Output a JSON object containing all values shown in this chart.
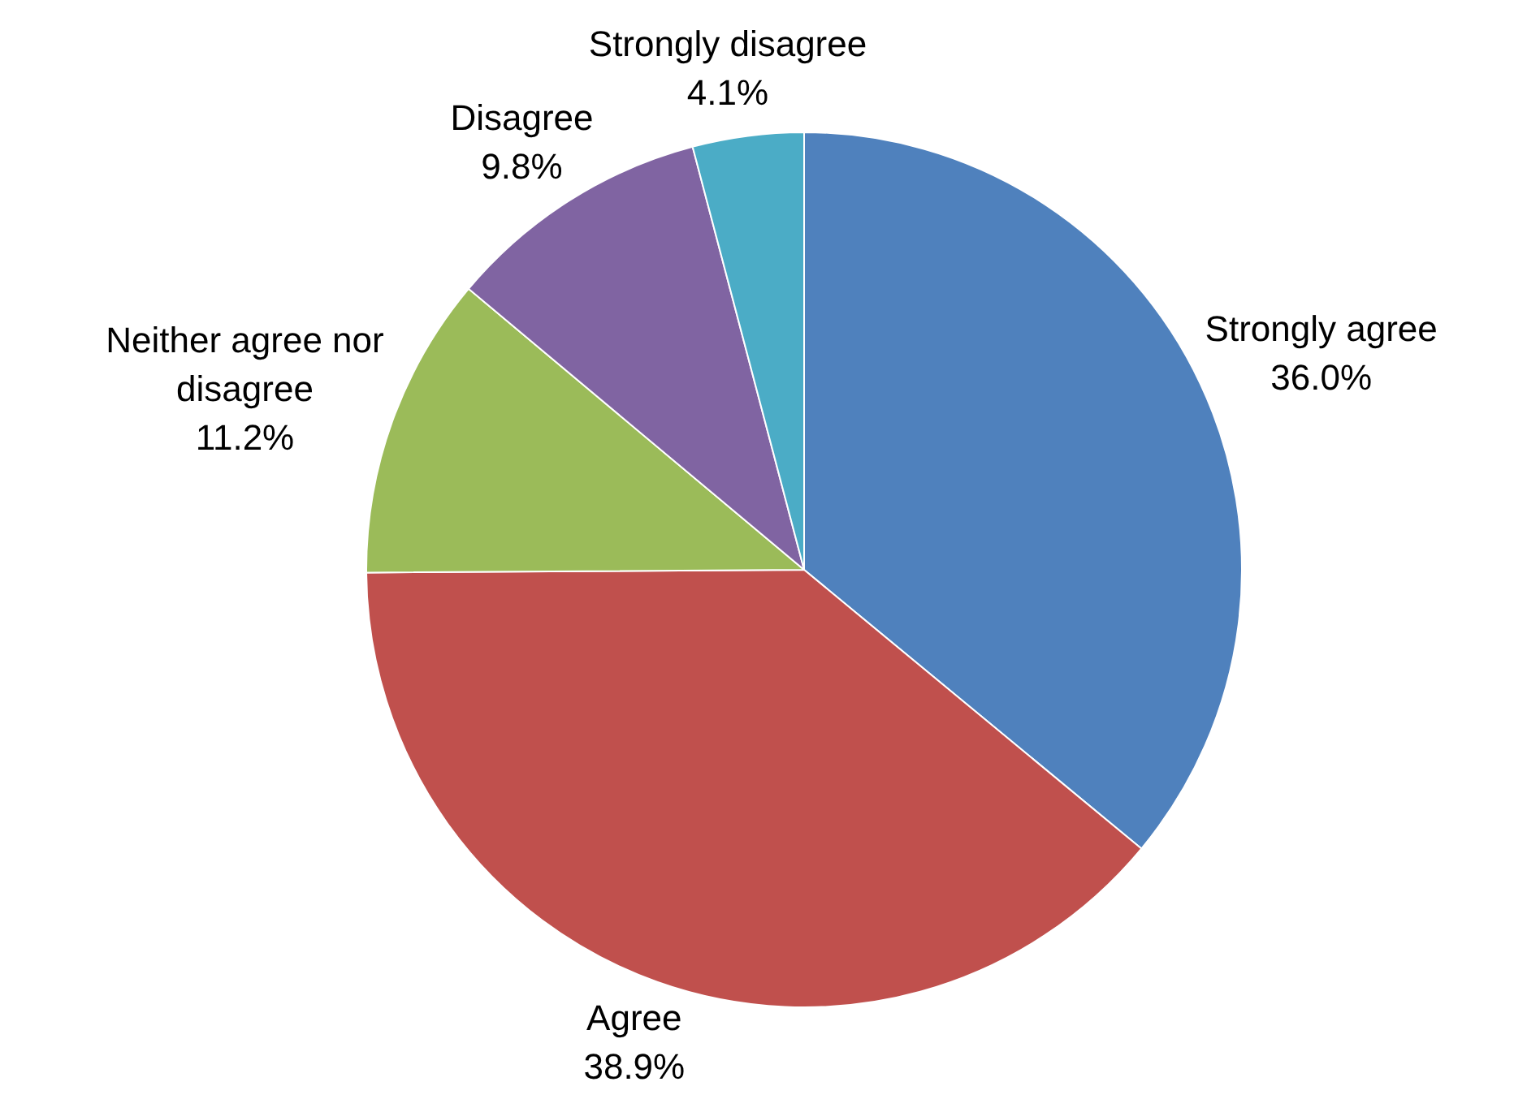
{
  "chart_data": {
    "type": "pie",
    "categories": [
      "Strongly agree",
      "Agree",
      "Neither agree nor disagree",
      "Disagree",
      "Strongly disagree"
    ],
    "values": [
      36.0,
      38.9,
      11.2,
      9.8,
      4.1
    ],
    "value_labels": [
      "36.0%",
      "38.9%",
      "11.2%",
      "9.8%",
      "4.1%"
    ],
    "colors": [
      "#4f81bd",
      "#c0504d",
      "#9bbb59",
      "#8064a2",
      "#4bacc6"
    ],
    "legend": false
  }
}
